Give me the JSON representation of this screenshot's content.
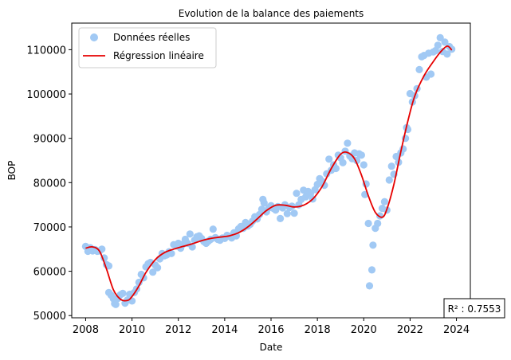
{
  "chart_data": {
    "type": "scatter",
    "title": "Evolution de la balance des paiements",
    "xlabel": "Date",
    "ylabel": "BOP",
    "xlim": [
      2007.4,
      2024.6
    ],
    "ylim": [
      49500,
      116000
    ],
    "x_ticks": [
      2008,
      2010,
      2012,
      2014,
      2016,
      2018,
      2020,
      2022,
      2024
    ],
    "y_ticks": [
      50000,
      60000,
      70000,
      80000,
      90000,
      100000,
      110000
    ],
    "x_tick_labels": [
      "2008",
      "2010",
      "2012",
      "2014",
      "2016",
      "2018",
      "2020",
      "2022",
      "2024"
    ],
    "y_tick_labels": [
      "50000",
      "60000",
      "70000",
      "80000",
      "90000",
      "100000",
      "110000"
    ],
    "grid": false,
    "legend_position": "top-left",
    "annotation": "R² : 0.7553",
    "series": [
      {
        "name": "Données réelles",
        "kind": "scatter",
        "color": "#a1c9f4",
        "points": [
          [
            2008.0,
            65600
          ],
          [
            2008.1,
            64500
          ],
          [
            2008.2,
            65300
          ],
          [
            2008.3,
            64600
          ],
          [
            2008.4,
            64900
          ],
          [
            2008.5,
            64500
          ],
          [
            2008.6,
            64600
          ],
          [
            2008.7,
            65000
          ],
          [
            2008.8,
            63000
          ],
          [
            2008.9,
            61500
          ],
          [
            2009.0,
            61200
          ],
          [
            2009.0,
            55200
          ],
          [
            2009.1,
            54600
          ],
          [
            2009.2,
            53800
          ],
          [
            2009.25,
            52700
          ],
          [
            2009.3,
            52500
          ],
          [
            2009.4,
            53900
          ],
          [
            2009.5,
            54700
          ],
          [
            2009.6,
            55000
          ],
          [
            2009.7,
            52800
          ],
          [
            2009.8,
            53500
          ],
          [
            2009.9,
            54800
          ],
          [
            2010.0,
            53300
          ],
          [
            2010.1,
            55200
          ],
          [
            2010.2,
            56000
          ],
          [
            2010.3,
            57500
          ],
          [
            2010.4,
            59300
          ],
          [
            2010.5,
            58500
          ],
          [
            2010.6,
            61000
          ],
          [
            2010.7,
            61700
          ],
          [
            2010.8,
            62000
          ],
          [
            2010.9,
            59800
          ],
          [
            2011.0,
            61400
          ],
          [
            2011.1,
            60800
          ],
          [
            2011.2,
            62800
          ],
          [
            2011.3,
            64000
          ],
          [
            2011.4,
            63500
          ],
          [
            2011.5,
            63700
          ],
          [
            2011.6,
            64400
          ],
          [
            2011.7,
            64000
          ],
          [
            2011.8,
            66000
          ],
          [
            2011.9,
            65700
          ],
          [
            2012.0,
            66300
          ],
          [
            2012.1,
            65200
          ],
          [
            2012.2,
            66100
          ],
          [
            2012.3,
            67200
          ],
          [
            2012.4,
            66300
          ],
          [
            2012.5,
            68400
          ],
          [
            2012.6,
            65500
          ],
          [
            2012.7,
            67000
          ],
          [
            2012.8,
            67800
          ],
          [
            2012.9,
            68000
          ],
          [
            2013.0,
            67400
          ],
          [
            2013.1,
            66700
          ],
          [
            2013.2,
            66300
          ],
          [
            2013.3,
            66800
          ],
          [
            2013.4,
            67200
          ],
          [
            2013.5,
            69500
          ],
          [
            2013.6,
            67600
          ],
          [
            2013.7,
            67200
          ],
          [
            2013.8,
            67000
          ],
          [
            2013.9,
            67500
          ],
          [
            2014.0,
            67400
          ],
          [
            2014.1,
            68100
          ],
          [
            2014.2,
            67900
          ],
          [
            2014.3,
            67500
          ],
          [
            2014.4,
            68700
          ],
          [
            2014.5,
            68000
          ],
          [
            2014.6,
            69600
          ],
          [
            2014.7,
            70100
          ],
          [
            2014.8,
            69700
          ],
          [
            2014.9,
            71000
          ],
          [
            2015.0,
            70200
          ],
          [
            2015.1,
            70600
          ],
          [
            2015.2,
            71300
          ],
          [
            2015.3,
            72300
          ],
          [
            2015.4,
            71800
          ],
          [
            2015.5,
            72800
          ],
          [
            2015.6,
            74000
          ],
          [
            2015.65,
            76200
          ],
          [
            2015.7,
            75400
          ],
          [
            2015.8,
            73400
          ],
          [
            2015.9,
            74300
          ],
          [
            2016.0,
            74800
          ],
          [
            2016.1,
            74200
          ],
          [
            2016.2,
            73800
          ],
          [
            2016.3,
            74600
          ],
          [
            2016.4,
            71900
          ],
          [
            2016.5,
            74300
          ],
          [
            2016.6,
            75000
          ],
          [
            2016.7,
            73000
          ],
          [
            2016.8,
            74400
          ],
          [
            2016.9,
            74700
          ],
          [
            2017.0,
            73100
          ],
          [
            2017.1,
            77600
          ],
          [
            2017.2,
            75000
          ],
          [
            2017.3,
            76200
          ],
          [
            2017.4,
            78300
          ],
          [
            2017.5,
            76800
          ],
          [
            2017.6,
            78000
          ],
          [
            2017.7,
            77500
          ],
          [
            2017.8,
            76300
          ],
          [
            2017.9,
            78400
          ],
          [
            2018.0,
            79600
          ],
          [
            2018.1,
            80900
          ],
          [
            2018.2,
            80300
          ],
          [
            2018.3,
            79400
          ],
          [
            2018.4,
            82000
          ],
          [
            2018.5,
            85300
          ],
          [
            2018.6,
            82800
          ],
          [
            2018.7,
            84000
          ],
          [
            2018.8,
            83200
          ],
          [
            2018.9,
            86200
          ],
          [
            2019.0,
            85600
          ],
          [
            2019.1,
            84500
          ],
          [
            2019.2,
            87100
          ],
          [
            2019.3,
            88900
          ],
          [
            2019.4,
            86000
          ],
          [
            2019.5,
            85400
          ],
          [
            2019.6,
            86700
          ],
          [
            2019.7,
            85000
          ],
          [
            2019.8,
            86500
          ],
          [
            2019.9,
            86200
          ],
          [
            2020.0,
            84000
          ],
          [
            2020.05,
            77300
          ],
          [
            2020.1,
            79700
          ],
          [
            2020.2,
            70800
          ],
          [
            2020.25,
            56700
          ],
          [
            2020.35,
            60300
          ],
          [
            2020.4,
            65900
          ],
          [
            2020.5,
            69700
          ],
          [
            2020.6,
            70800
          ],
          [
            2020.7,
            72500
          ],
          [
            2020.8,
            74200
          ],
          [
            2020.9,
            75700
          ],
          [
            2021.0,
            73800
          ],
          [
            2021.1,
            80600
          ],
          [
            2021.2,
            83700
          ],
          [
            2021.3,
            81900
          ],
          [
            2021.4,
            85900
          ],
          [
            2021.5,
            84600
          ],
          [
            2021.6,
            86700
          ],
          [
            2021.7,
            87600
          ],
          [
            2021.8,
            90000
          ],
          [
            2021.85,
            92400
          ],
          [
            2021.9,
            92000
          ],
          [
            2022.0,
            100100
          ],
          [
            2022.1,
            98200
          ],
          [
            2022.2,
            99600
          ],
          [
            2022.3,
            101200
          ],
          [
            2022.4,
            105500
          ],
          [
            2022.5,
            108400
          ],
          [
            2022.6,
            108700
          ],
          [
            2022.7,
            103800
          ],
          [
            2022.8,
            109200
          ],
          [
            2022.9,
            104500
          ],
          [
            2023.0,
            109500
          ],
          [
            2023.1,
            109800
          ],
          [
            2023.2,
            111000
          ],
          [
            2023.3,
            112700
          ],
          [
            2023.4,
            109600
          ],
          [
            2023.5,
            111700
          ],
          [
            2023.6,
            109000
          ],
          [
            2023.7,
            110700
          ],
          [
            2023.8,
            110100
          ]
        ]
      },
      {
        "name": "Régression linéaire",
        "kind": "line",
        "color": "#e60000",
        "points": [
          [
            2008.0,
            65200
          ],
          [
            2008.3,
            65500
          ],
          [
            2008.6,
            64500
          ],
          [
            2008.9,
            60500
          ],
          [
            2009.2,
            55800
          ],
          [
            2009.5,
            53700
          ],
          [
            2009.8,
            53400
          ],
          [
            2010.0,
            54300
          ],
          [
            2010.3,
            56700
          ],
          [
            2010.6,
            59700
          ],
          [
            2011.0,
            62600
          ],
          [
            2011.4,
            64200
          ],
          [
            2011.8,
            65000
          ],
          [
            2012.2,
            65600
          ],
          [
            2012.6,
            66200
          ],
          [
            2013.0,
            66900
          ],
          [
            2013.4,
            67400
          ],
          [
            2013.8,
            67700
          ],
          [
            2014.2,
            68000
          ],
          [
            2014.6,
            68700
          ],
          [
            2015.0,
            70000
          ],
          [
            2015.4,
            71800
          ],
          [
            2015.8,
            73700
          ],
          [
            2016.2,
            74900
          ],
          [
            2016.6,
            74900
          ],
          [
            2017.0,
            74500
          ],
          [
            2017.4,
            74900
          ],
          [
            2017.8,
            76300
          ],
          [
            2018.2,
            79100
          ],
          [
            2018.6,
            83200
          ],
          [
            2019.0,
            86400
          ],
          [
            2019.3,
            86800
          ],
          [
            2019.6,
            85400
          ],
          [
            2019.9,
            81700
          ],
          [
            2020.2,
            77000
          ],
          [
            2020.5,
            73300
          ],
          [
            2020.8,
            72200
          ],
          [
            2021.0,
            74000
          ],
          [
            2021.3,
            79600
          ],
          [
            2021.6,
            87000
          ],
          [
            2021.9,
            93800
          ],
          [
            2022.2,
            99500
          ],
          [
            2022.6,
            104100
          ],
          [
            2023.0,
            107300
          ],
          [
            2023.3,
            109400
          ],
          [
            2023.6,
            110800
          ],
          [
            2023.8,
            109900
          ]
        ]
      }
    ]
  }
}
